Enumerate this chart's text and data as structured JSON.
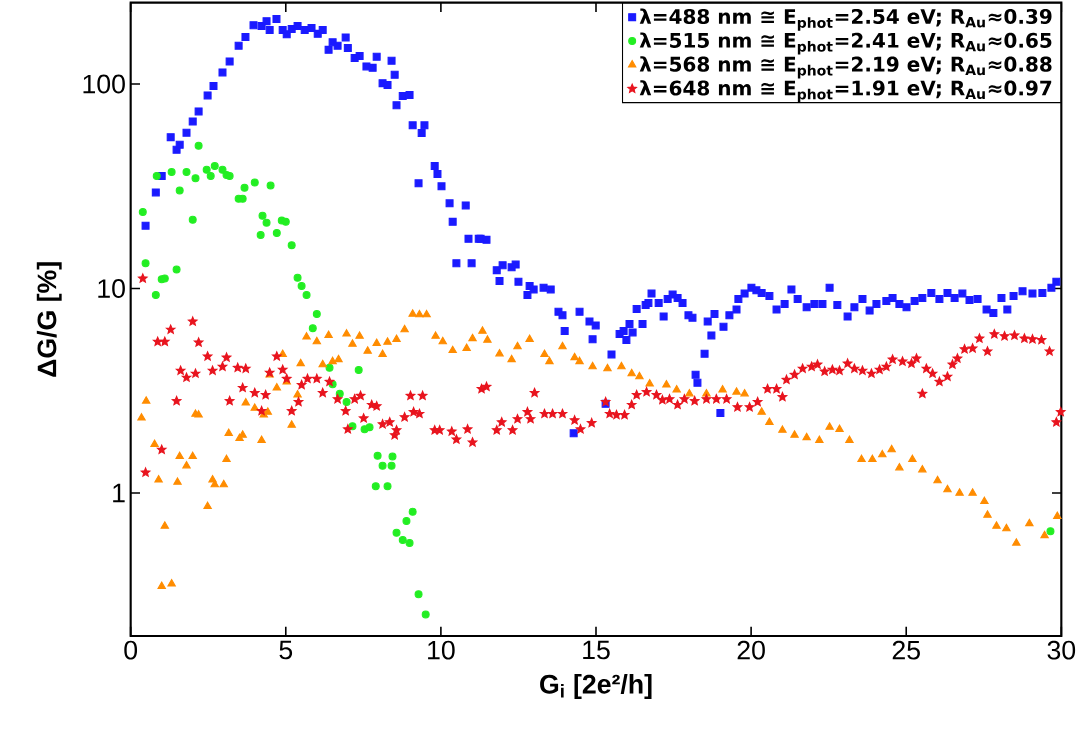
{
  "chart_data": {
    "type": "scatter",
    "xlabel": "G$_{i}$ [2e²/h]",
    "ylabel": "ΔG/G [%]",
    "xlim": [
      0,
      30
    ],
    "ylim": [
      0.2,
      250
    ],
    "xticks": [
      0,
      5,
      10,
      15,
      20,
      25,
      30
    ],
    "yticks": [
      1,
      10,
      100
    ],
    "log": "y",
    "legend": "top right",
    "grid": false,
    "series": [
      {
        "name": "λ=488 nm ≅ E$_{phot}$=2.54 eV; R$_{Au}$≈0.39",
        "color": "#1a1aff",
        "marker": "square",
        "x": [
          0.48,
          0.81,
          1.0,
          1.29,
          1.48,
          1.58,
          1.8,
          2.0,
          2.19,
          2.48,
          2.67,
          2.96,
          3.19,
          3.48,
          3.7,
          3.96,
          4.22,
          4.38,
          4.48,
          4.7,
          4.9,
          5.03,
          5.19,
          5.38,
          5.61,
          5.83,
          6.03,
          6.19,
          6.38,
          6.51,
          6.67,
          6.93,
          7.0,
          7.22,
          7.38,
          7.6,
          7.8,
          7.93,
          8.12,
          8.28,
          8.41,
          8.51,
          8.57,
          8.77,
          8.99,
          9.09,
          9.38,
          9.47,
          9.28,
          9.8,
          9.89,
          10.02,
          10.28,
          10.38,
          10.8,
          10.89,
          11.22,
          10.5,
          10.99,
          11.28,
          11.47,
          11.8,
          11.89,
          11.99,
          12.28,
          12.41,
          12.5,
          12.86,
          12.79,
          12.99,
          13.31,
          13.54,
          13.79,
          13.92,
          13.99,
          14.47,
          14.79,
          14.99,
          14.89,
          15.5,
          15.31,
          14.28,
          15.76,
          15.89,
          15.98,
          16.08,
          16.18,
          16.31,
          16.5,
          16.6,
          16.69,
          16.79,
          17.02,
          17.18,
          17.31,
          17.47,
          17.63,
          17.79,
          17.98,
          18.11,
          18.21,
          18.27,
          18.5,
          18.6,
          18.72,
          18.82,
          19.01,
          19.11,
          19.3,
          19.53,
          19.59,
          19.79,
          20.01,
          20.17,
          20.34,
          20.59,
          20.82,
          21.08,
          21.3,
          21.5,
          21.79,
          22.04,
          22.3,
          22.53,
          22.78,
          23.11,
          23.33,
          23.59,
          23.82,
          24.04,
          24.36,
          24.56,
          24.78,
          25.01,
          25.27,
          25.52,
          25.81,
          26.07,
          26.33,
          26.56,
          26.81,
          27.04,
          27.3,
          27.59,
          27.81,
          28.07,
          28.26,
          28.46,
          28.75,
          29.07,
          29.39,
          29.68,
          29.84
        ],
        "values": [
          20.3,
          29.5,
          35.5,
          55,
          47.7,
          50.5,
          57.8,
          65.6,
          73.5,
          88,
          97.8,
          114,
          129,
          154,
          170,
          194,
          192,
          203,
          184,
          208,
          184,
          175,
          186,
          192,
          184,
          188,
          176,
          184,
          147,
          160,
          154,
          169,
          150,
          134,
          137,
          122,
          120,
          136,
          101,
          99,
          130,
          111,
          78.8,
          87.5,
          88.4,
          62.8,
          57.7,
          62.8,
          32.7,
          39.7,
          36.3,
          31.6,
          26.1,
          21.2,
          25.5,
          17.5,
          17.5,
          13.3,
          13.3,
          17.5,
          17.3,
          12.3,
          10.9,
          13.0,
          12.7,
          13.1,
          10.8,
          10.3,
          9.3,
          9.9,
          10.1,
          9.9,
          7.7,
          7.4,
          6.2,
          7.7,
          6.9,
          6.6,
          5.65,
          4.76,
          2.73,
          1.96,
          6.0,
          6.2,
          5.6,
          6.7,
          6.1,
          7.95,
          6.7,
          8.3,
          8.5,
          9.45,
          8.5,
          7.3,
          8.9,
          9.35,
          9.0,
          8.5,
          7.4,
          7.2,
          3.79,
          3.46,
          4.8,
          6.9,
          5.9,
          7.5,
          2.46,
          6.5,
          7.4,
          7.9,
          8.9,
          9.45,
          10.1,
          9.8,
          9.5,
          9.2,
          7.9,
          8.4,
          9.9,
          8.9,
          8.1,
          8.4,
          8.4,
          10.1,
          8.3,
          7.3,
          8.1,
          8.9,
          7.8,
          8.4,
          8.7,
          9.0,
          8.4,
          8.1,
          8.7,
          9.0,
          9.5,
          8.9,
          9.5,
          9.0,
          9.45,
          8.8,
          8.9,
          7.9,
          7.6,
          9.0,
          7.9,
          9.2,
          9.7,
          9.45,
          9.5,
          10.1,
          10.8
        ]
      },
      {
        "name": "λ=515 nm ≅ E$_{phot}$=2.41 eV; R$_{Au}$≈0.65",
        "color": "#22ee22",
        "marker": "circle",
        "x": [
          0.39,
          0.48,
          0.81,
          1.0,
          1.1,
          0.84,
          1.32,
          1.48,
          1.58,
          1.8,
          2.0,
          2.09,
          2.19,
          2.45,
          2.58,
          2.71,
          2.96,
          3.09,
          3.19,
          3.48,
          3.61,
          3.67,
          4.0,
          4.25,
          4.19,
          4.38,
          4.51,
          4.71,
          4.87,
          5.0,
          5.19,
          5.38,
          5.51,
          5.67,
          6.0,
          5.87,
          6.41,
          6.51,
          6.74,
          6.96,
          7.35,
          7.15,
          7.54,
          7.7,
          7.96,
          8.12,
          8.44,
          8.41,
          7.9,
          8.28,
          8.57,
          8.77,
          8.99,
          8.89,
          9.09,
          9.28,
          9.51,
          29.65
        ],
        "values": [
          23.7,
          13.3,
          9.3,
          11.1,
          11.2,
          35.5,
          37.1,
          12.4,
          30.2,
          37.1,
          21.7,
          34.6,
          49.9,
          38.1,
          35.5,
          39.7,
          38.1,
          35.9,
          35.5,
          27.5,
          27.5,
          31.1,
          33.0,
          22.7,
          18.3,
          21.0,
          31.9,
          18.7,
          21.5,
          21.2,
          16.3,
          11.3,
          10.3,
          9.3,
          7.5,
          6.4,
          4.1,
          3.4,
          3.06,
          2.79,
          4.0,
          2.12,
          2.05,
          2.1,
          1.52,
          1.36,
          1.51,
          1.36,
          1.08,
          1.08,
          0.64,
          0.59,
          0.57,
          0.73,
          0.81,
          0.32,
          0.255,
          0.65
        ]
      },
      {
        "name": "λ=568 nm ≅ E$_{phot}$=2.19 eV; R$_{Au}$≈0.88",
        "color": "#ff8c00",
        "marker": "triangle",
        "x": [
          0.5,
          0.35,
          0.77,
          0.9,
          1.1,
          1.0,
          1.32,
          1.51,
          1.58,
          1.8,
          2.0,
          2.09,
          2.19,
          2.48,
          2.64,
          2.71,
          3.0,
          3.09,
          3.16,
          3.51,
          3.61,
          3.71,
          4.0,
          4.22,
          4.29,
          4.42,
          4.48,
          4.71,
          4.9,
          5.03,
          5.19,
          5.38,
          5.48,
          5.67,
          6.0,
          6.19,
          6.38,
          6.51,
          6.7,
          6.96,
          7.15,
          7.38,
          7.64,
          7.93,
          8.12,
          8.28,
          8.57,
          8.83,
          9.09,
          9.31,
          9.54,
          9.83,
          10.06,
          10.38,
          10.83,
          11.02,
          11.34,
          11.5,
          11.89,
          12.28,
          12.47,
          12.86,
          13.34,
          13.5,
          13.92,
          14.31,
          14.47,
          14.89,
          15.37,
          15.82,
          16.15,
          16.4,
          16.73,
          17.27,
          17.6,
          18.01,
          18.56,
          19.08,
          19.53,
          19.79,
          20.34,
          20.59,
          21.01,
          21.4,
          21.79,
          22.2,
          22.53,
          22.85,
          23.17,
          23.56,
          23.91,
          24.23,
          24.53,
          24.78,
          25.2,
          25.52,
          26.01,
          26.33,
          26.72,
          27.14,
          27.52,
          27.62,
          27.91,
          28.23,
          28.55,
          28.97,
          29.46,
          29.87
        ],
        "values": [
          2.82,
          2.33,
          1.73,
          1.16,
          0.69,
          0.35,
          0.36,
          1.13,
          1.51,
          1.36,
          1.51,
          2.43,
          2.41,
          0.86,
          1.16,
          1.1,
          1.1,
          1.46,
          1.96,
          1.85,
          1.92,
          2.76,
          2.6,
          1.81,
          2.41,
          2.49,
          3.79,
          3.27,
          4.77,
          3.5,
          2.15,
          3.02,
          4.3,
          5.8,
          5.5,
          4.25,
          5.9,
          4.4,
          4.5,
          6.0,
          5.35,
          5.85,
          4.95,
          5.4,
          4.77,
          5.47,
          5.65,
          6.3,
          7.5,
          7.45,
          7.45,
          5.85,
          5.5,
          4.98,
          5.1,
          5.7,
          6.2,
          5.6,
          4.8,
          4.5,
          5.2,
          5.65,
          4.77,
          4.4,
          5.2,
          4.6,
          4.4,
          4.15,
          4.06,
          4.15,
          3.84,
          3.71,
          3.42,
          3.38,
          3.2,
          3.06,
          3.06,
          3.2,
          3.12,
          3.06,
          2.49,
          2.22,
          2.03,
          1.92,
          1.87,
          1.81,
          2.1,
          2.05,
          1.81,
          1.46,
          1.46,
          1.54,
          1.63,
          1.33,
          1.46,
          1.3,
          1.15,
          1.04,
          1.0,
          1.0,
          0.91,
          0.78,
          0.69,
          0.67,
          0.57,
          0.71,
          0.62,
          0.77
        ]
      },
      {
        "name": "λ=648 nm ≅ E$_{phot}$=1.91 eV; R$_{Au}$≈0.97",
        "color": "#e8141e",
        "marker": "star",
        "x": [
          0.39,
          0.48,
          0.87,
          1.1,
          1.0,
          1.29,
          1.48,
          1.61,
          1.8,
          2.0,
          2.09,
          2.19,
          2.48,
          2.64,
          2.96,
          3.09,
          3.19,
          3.45,
          3.71,
          3.61,
          4.0,
          4.22,
          4.35,
          4.48,
          4.71,
          4.9,
          5.03,
          5.19,
          5.41,
          5.51,
          5.7,
          6.0,
          6.19,
          6.41,
          6.67,
          6.93,
          7.0,
          7.22,
          7.41,
          7.51,
          7.77,
          7.93,
          8.12,
          8.35,
          8.57,
          8.51,
          8.83,
          9.02,
          9.12,
          9.31,
          9.41,
          9.8,
          9.96,
          10.35,
          10.5,
          10.86,
          11.02,
          11.31,
          11.47,
          11.8,
          11.96,
          12.31,
          12.47,
          12.79,
          12.89,
          13.02,
          13.34,
          13.6,
          13.92,
          14.31,
          14.5,
          14.86,
          15.31,
          15.44,
          15.66,
          15.92,
          16.15,
          16.31,
          16.63,
          16.95,
          17.14,
          17.37,
          17.63,
          17.85,
          18.18,
          18.56,
          18.88,
          19.21,
          19.56,
          19.95,
          20.21,
          20.53,
          20.82,
          21.01,
          21.14,
          21.4,
          21.66,
          21.95,
          22.14,
          22.37,
          22.62,
          22.85,
          23.11,
          23.33,
          23.59,
          23.88,
          24.14,
          24.36,
          24.56,
          24.88,
          25.17,
          25.33,
          25.52,
          25.65,
          25.85,
          26.07,
          26.33,
          26.49,
          26.65,
          26.88,
          27.14,
          27.36,
          27.62,
          27.84,
          28.17,
          28.49,
          28.81,
          29.07,
          29.36,
          29.62,
          29.84,
          29.98
        ],
        "values": [
          11.2,
          1.26,
          5.5,
          5.5,
          1.63,
          6.3,
          2.82,
          3.97,
          3.67,
          6.9,
          3.84,
          5.45,
          4.66,
          3.97,
          4.15,
          4.6,
          2.82,
          4.1,
          4.06,
          3.27,
          3.09,
          2.52,
          3.02,
          3.88,
          4.66,
          4.01,
          3.62,
          2.52,
          2.79,
          3.38,
          3.62,
          3.62,
          3.09,
          3.5,
          2.88,
          2.52,
          2.05,
          2.88,
          2.99,
          2.32,
          2.7,
          2.66,
          2.17,
          2.22,
          2.03,
          1.92,
          2.35,
          2.99,
          2.49,
          2.44,
          2.99,
          2.03,
          2.03,
          2.0,
          1.83,
          2.05,
          1.77,
          3.23,
          3.31,
          2.03,
          2.22,
          2.03,
          2.3,
          2.49,
          2.3,
          3.09,
          2.44,
          2.44,
          2.44,
          2.27,
          2.05,
          2.2,
          2.79,
          2.44,
          2.41,
          2.41,
          2.7,
          3.02,
          3.12,
          3.02,
          2.85,
          2.88,
          2.7,
          2.88,
          2.82,
          2.88,
          2.88,
          2.88,
          2.63,
          2.63,
          2.79,
          3.23,
          3.23,
          2.95,
          3.58,
          3.79,
          4.06,
          4.15,
          4.25,
          3.93,
          4.01,
          3.97,
          4.3,
          4.06,
          3.97,
          3.84,
          4.01,
          4.15,
          4.5,
          4.4,
          4.3,
          4.55,
          3.06,
          4.06,
          3.84,
          3.5,
          3.71,
          4.25,
          4.55,
          5.05,
          5.1,
          5.7,
          4.93,
          5.98,
          5.85,
          5.9,
          5.7,
          5.65,
          5.6,
          4.93,
          2.22,
          2.49
        ]
      }
    ]
  }
}
